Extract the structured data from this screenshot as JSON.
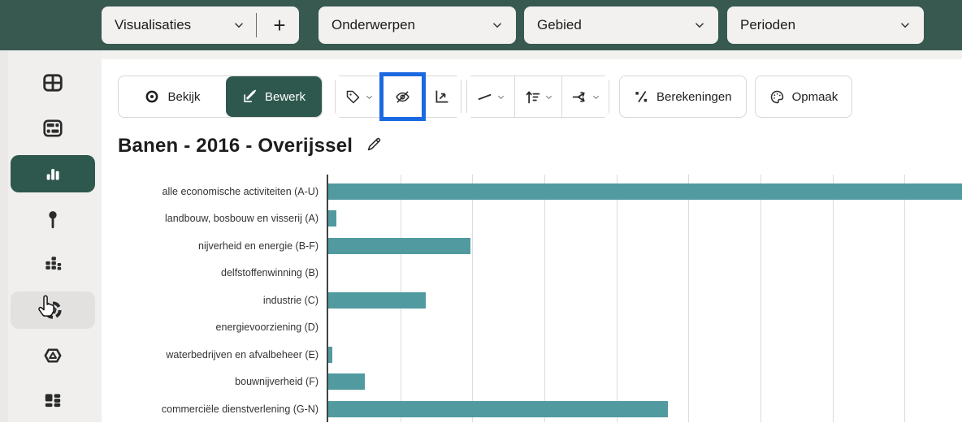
{
  "colors": {
    "header_bg": "#37594f",
    "accent_green": "#2e584d",
    "bar_teal": "#519aa0",
    "highlight_blue": "#1b69e0",
    "sidebar_bg": "#f0efee",
    "control_bg": "#f2f1ef"
  },
  "header": {
    "visualisaties_label": "Visualisaties",
    "add_label": "+",
    "onderwerpen_label": "Onderwerpen",
    "gebied_label": "Gebied",
    "perioden_label": "Perioden"
  },
  "sidebar": {
    "items": [
      {
        "icon": "table-icon",
        "state": "normal"
      },
      {
        "icon": "table-layout-icon",
        "state": "normal"
      },
      {
        "icon": "bar-chart-icon",
        "state": "active"
      },
      {
        "icon": "map-pin-icon",
        "state": "normal"
      },
      {
        "icon": "stacked-bars-icon",
        "state": "normal"
      },
      {
        "icon": "donut-chart-icon",
        "state": "hovered-with-cursor"
      },
      {
        "icon": "hexagon-map-icon",
        "state": "normal"
      },
      {
        "icon": "cards-layout-icon",
        "state": "normal"
      }
    ]
  },
  "toolbar": {
    "bekijk_label": "Bekijk",
    "bewerk_label": "Bewerk",
    "berekeningen_label": "Berekeningen",
    "opmaak_label": "Opmaak",
    "icon_buttons": [
      "tag-icon",
      "hide-eye-slash-icon",
      "axes-arrow-icon",
      "trend-line-icon",
      "sort-icon",
      "split-branch-icon"
    ],
    "highlighted_button": "hide-eye-slash-icon"
  },
  "page": {
    "title": "Banen - 2016 - Overijssel"
  },
  "chart_data": {
    "type": "bar",
    "orientation": "horizontal",
    "title": "Banen - 2016 - Overijssel",
    "categories": [
      "alle economische activiteiten (A-U)",
      "landbouw, bosbouw en visserij (A)",
      "nijverheid en energie (B-F)",
      "delfstoffenwinning (B)",
      "industrie (C)",
      "energievoorziening (D)",
      "waterbedrijven en afvalbeheer (E)",
      "bouwnijverheid (F)",
      "commerciële dienstverlening (G-N)"
    ],
    "values": [
      8.85,
      0.11,
      1.97,
      0,
      1.35,
      0,
      0.06,
      0.51,
      4.71
    ],
    "value_unit": "gridline-intervals (axis tick labels cut off below view)",
    "xlim": [
      0,
      8.82
    ],
    "grid": "vertical-gridlines-every-1-unit",
    "legend": "none",
    "bar_color": "#519aa0",
    "notes_visible_in_image": "first bar clipped at right edge; bottom row partially cut off"
  }
}
